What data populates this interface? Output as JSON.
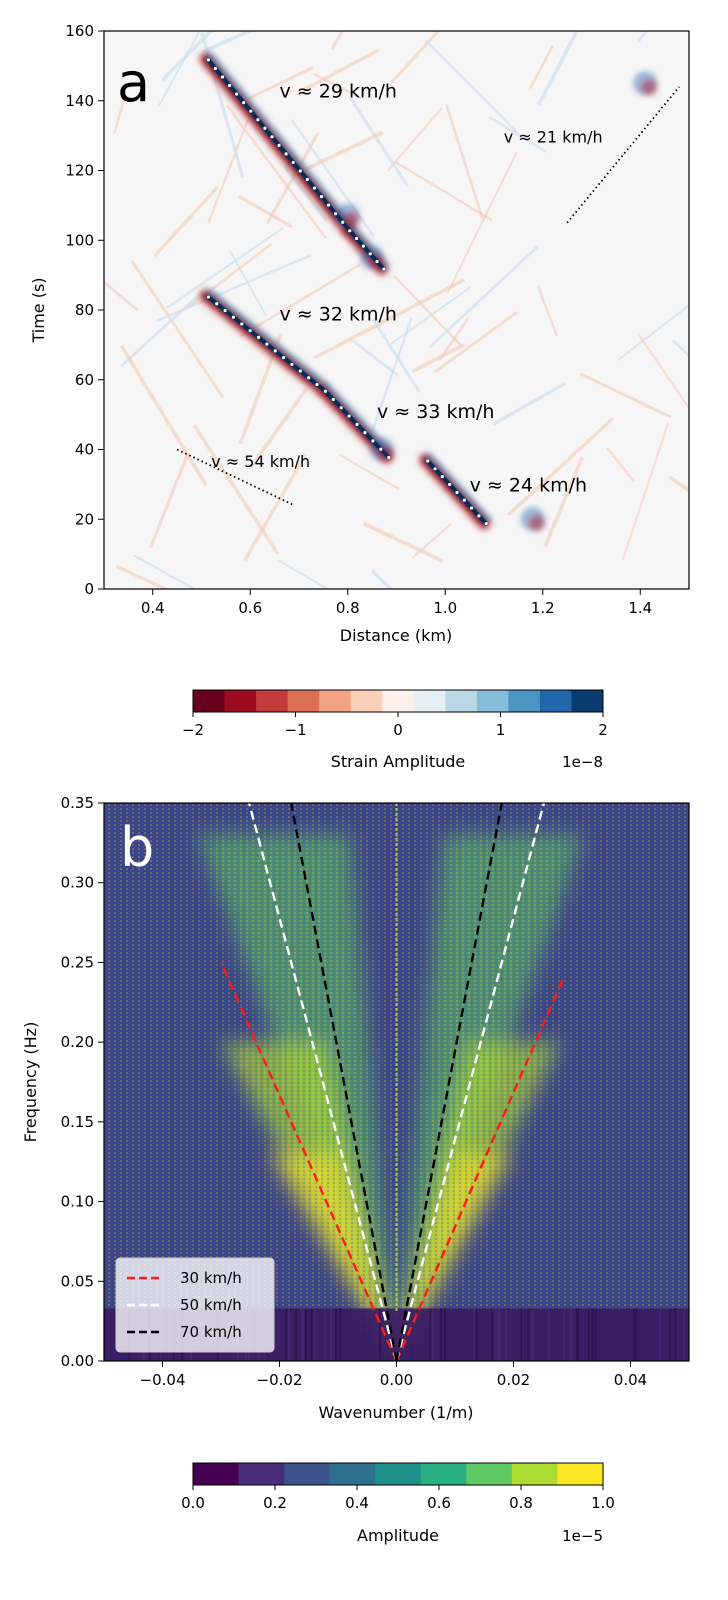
{
  "chart_data": [
    {
      "type": "heatmap",
      "panel": "a",
      "xlabel": "Distance (km)",
      "ylabel": "Time (s)",
      "xlim": [
        0.3,
        1.5
      ],
      "ylim": [
        0,
        160
      ],
      "x_ticks": [
        0.4,
        0.6,
        0.8,
        1.0,
        1.2,
        1.4
      ],
      "x_tick_labels": [
        "0.4",
        "0.6",
        "0.8",
        "1.0",
        "1.2",
        "1.4"
      ],
      "y_ticks": [
        0,
        20,
        40,
        60,
        80,
        100,
        120,
        140,
        160
      ],
      "y_tick_labels": [
        "0",
        "20",
        "40",
        "60",
        "80",
        "100",
        "120",
        "140",
        "160"
      ],
      "tracks": [
        {
          "x": [
            0.51,
            0.8
          ],
          "y": [
            152,
            103
          ]
        },
        {
          "x": [
            0.8,
            0.87
          ],
          "y": [
            103,
            92
          ]
        },
        {
          "x": [
            0.51,
            0.75
          ],
          "y": [
            84,
            57
          ]
        },
        {
          "x": [
            0.75,
            0.88
          ],
          "y": [
            57,
            38
          ]
        },
        {
          "x": [
            0.96,
            1.08
          ],
          "y": [
            37,
            19
          ]
        },
        {
          "x": [
            1.25,
            1.48
          ],
          "y": [
            105,
            144
          ]
        }
      ],
      "annotations": [
        {
          "text": "v ≈ 29 km/h",
          "x": 0.66,
          "y": 141
        },
        {
          "text": "v ≈ 21 km/h",
          "x": 1.12,
          "y": 128
        },
        {
          "text": "v ≈ 32 km/h",
          "x": 0.66,
          "y": 77
        },
        {
          "text": "v ≈ 33 km/h",
          "x": 0.86,
          "y": 49
        },
        {
          "text": "v ≈ 54 km/h",
          "x": 0.52,
          "y": 35
        },
        {
          "text": "v ≈ 24 km/h",
          "x": 1.05,
          "y": 28
        }
      ],
      "reference_lines": [
        {
          "label": "v ≈ 54 km/h",
          "x": [
            0.45,
            0.69
          ],
          "y": [
            40,
            24
          ]
        },
        {
          "label": "v ≈ 21 km/h",
          "x": [
            1.25,
            1.48
          ],
          "y": [
            105,
            144
          ]
        }
      ],
      "colorbar": {
        "label": "Strain Amplitude",
        "scale_label": "1e−8",
        "range": [
          -2,
          2
        ],
        "ticks": [
          -2,
          -1,
          0,
          1,
          2
        ],
        "tick_labels": [
          "−2",
          "−1",
          "0",
          "1",
          "2"
        ],
        "colors": [
          "#67001f",
          "#9e0c20",
          "#c43b3c",
          "#dd6f56",
          "#f0a283",
          "#fbd0b9",
          "#fbf0ea",
          "#e6eff4",
          "#bbd8e9",
          "#86bdd9",
          "#4a95c4",
          "#2367ab",
          "#0a3b70"
        ]
      },
      "panel_label": "a"
    },
    {
      "type": "heatmap",
      "panel": "b",
      "xlabel": "Wavenumber (1/m)",
      "ylabel": "Frequency (Hz)",
      "xlim": [
        -0.05,
        0.05
      ],
      "ylim": [
        0,
        0.35
      ],
      "x_ticks": [
        -0.04,
        -0.02,
        0.0,
        0.02,
        0.04
      ],
      "x_tick_labels": [
        "−0.04",
        "−0.02",
        "0.00",
        "0.02",
        "0.04"
      ],
      "y_ticks": [
        0.0,
        0.05,
        0.1,
        0.15,
        0.2,
        0.25,
        0.3,
        0.35
      ],
      "y_tick_labels": [
        "0.00",
        "0.05",
        "0.10",
        "0.15",
        "0.20",
        "0.25",
        "0.30",
        "0.35"
      ],
      "series": [
        {
          "name": "30 km/h",
          "color": "#ff1a1a",
          "speed_kmh": 30,
          "f_max": 0.25
        },
        {
          "name": "50 km/h",
          "color": "#ffffff",
          "speed_kmh": 50,
          "f_max": 0.35
        },
        {
          "name": "70 km/h",
          "color": "#000000",
          "speed_kmh": 70,
          "f_max": 0.35
        }
      ],
      "legend": {
        "placement": "lower-left"
      },
      "colorbar": {
        "label": "Amplitude",
        "scale_label": "1e−5",
        "range": [
          0,
          1
        ],
        "ticks": [
          0.0,
          0.2,
          0.4,
          0.6,
          0.8,
          1.0
        ],
        "tick_labels": [
          "0.0",
          "0.2",
          "0.4",
          "0.6",
          "0.8",
          "1.0"
        ],
        "colors": [
          "#440154",
          "#472d7b",
          "#3b528b",
          "#2c728e",
          "#21918c",
          "#28ae80",
          "#5ec962",
          "#addc30",
          "#fde725"
        ]
      },
      "panel_label": "b"
    }
  ]
}
